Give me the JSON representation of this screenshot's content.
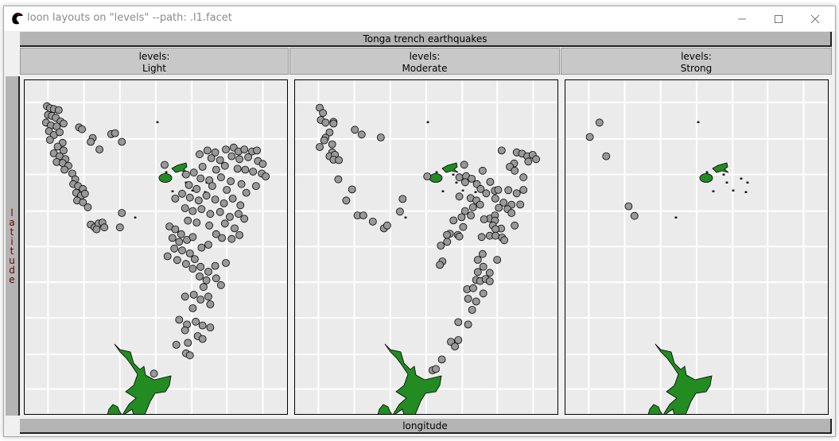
{
  "window": {
    "title": "loon layouts on \"levels\" --path: .l1.facet",
    "controls": [
      "minimize",
      "maximize",
      "close"
    ]
  },
  "chart_data": {
    "type": "scatter",
    "title": "Tonga trench earthquakes",
    "xlabel": "longitude",
    "ylabel": "latitude",
    "xlim": [
      162.9,
      189.9
    ],
    "ylim": [
      -42.3,
      -7.6
    ],
    "grid": true,
    "grid_x": [
      165.3,
      169.0,
      172.7,
      176.4,
      180.1,
      183.7,
      187.4
    ],
    "grid_y": [
      -9.9,
      -13.7,
      -17.4,
      -21.2,
      -24.9,
      -28.6,
      -32.3,
      -36.1,
      -39.7
    ],
    "background_map": "New Zealand and Fiji land masses",
    "colors": {
      "points": "#999999",
      "land": "#228b22",
      "panel_bg": "#ebebeb",
      "grid": "#ffffff"
    },
    "facet_variable": "levels:",
    "panels": [
      {
        "label": "Light",
        "points": [
          [
            165.2,
            -10.3
          ],
          [
            165.5,
            -10.5
          ],
          [
            165.9,
            -10.6
          ],
          [
            166.4,
            -10.7
          ],
          [
            165.3,
            -11.2
          ],
          [
            165.7,
            -11.3
          ],
          [
            166.1,
            -11.5
          ],
          [
            166.6,
            -11.9
          ],
          [
            165.1,
            -12.0
          ],
          [
            165.6,
            -12.3
          ],
          [
            166.2,
            -12.4
          ],
          [
            166.9,
            -12.1
          ],
          [
            165.4,
            -12.9
          ],
          [
            165.9,
            -13.3
          ],
          [
            166.5,
            -13.0
          ],
          [
            165.5,
            -13.8
          ],
          [
            166.8,
            -14.1
          ],
          [
            166.3,
            -14.5
          ],
          [
            166.9,
            -14.9
          ],
          [
            165.9,
            -15.2
          ],
          [
            166.5,
            -15.5
          ],
          [
            167.1,
            -15.8
          ],
          [
            166.2,
            -16.1
          ],
          [
            166.8,
            -16.2
          ],
          [
            167.4,
            -16.5
          ],
          [
            167.0,
            -16.9
          ],
          [
            167.8,
            -17.3
          ],
          [
            168.1,
            -17.9
          ],
          [
            167.9,
            -18.4
          ],
          [
            168.4,
            -18.6
          ],
          [
            168.9,
            -18.9
          ],
          [
            168.2,
            -19.3
          ],
          [
            168.7,
            -19.6
          ],
          [
            169.1,
            -19.4
          ],
          [
            168.3,
            -20.1
          ],
          [
            168.9,
            -20.3
          ],
          [
            169.4,
            -20.8
          ],
          [
            169.7,
            -22.6
          ],
          [
            170.1,
            -22.9
          ],
          [
            170.5,
            -22.5
          ],
          [
            170.9,
            -22.4
          ],
          [
            171.1,
            -22.9
          ],
          [
            170.3,
            -23.1
          ],
          [
            168.5,
            -12.5
          ],
          [
            168.8,
            -12.7
          ],
          [
            169.9,
            -13.6
          ],
          [
            169.7,
            -14.0
          ],
          [
            170.6,
            -14.8
          ],
          [
            171.8,
            -13.2
          ],
          [
            172.2,
            -13.1
          ],
          [
            172.9,
            -14.0
          ],
          [
            172.9,
            -21.4
          ],
          [
            172.7,
            -22.9
          ],
          [
            181.7,
            -14.9
          ],
          [
            182.5,
            -15.1
          ],
          [
            183.6,
            -14.8
          ],
          [
            184.4,
            -14.6
          ],
          [
            184.9,
            -15.0
          ],
          [
            185.5,
            -14.8
          ],
          [
            186.3,
            -15.0
          ],
          [
            186.8,
            -14.9
          ],
          [
            182.1,
            -15.7
          ],
          [
            183.0,
            -15.9
          ],
          [
            184.2,
            -15.5
          ],
          [
            185.0,
            -15.8
          ],
          [
            185.9,
            -15.6
          ],
          [
            186.9,
            -16.0
          ],
          [
            187.4,
            -16.3
          ],
          [
            181.2,
            -16.6
          ],
          [
            182.6,
            -16.9
          ],
          [
            183.5,
            -16.5
          ],
          [
            184.8,
            -16.8
          ],
          [
            185.6,
            -16.9
          ],
          [
            186.4,
            -17.1
          ],
          [
            187.3,
            -17.3
          ],
          [
            187.7,
            -17.6
          ],
          [
            179.5,
            -17.4
          ],
          [
            180.3,
            -17.2
          ],
          [
            181.0,
            -17.8
          ],
          [
            181.9,
            -18.0
          ],
          [
            183.1,
            -17.7
          ],
          [
            184.1,
            -18.1
          ],
          [
            185.2,
            -18.4
          ],
          [
            186.7,
            -18.6
          ],
          [
            179.8,
            -18.5
          ],
          [
            180.6,
            -18.9
          ],
          [
            182.2,
            -18.6
          ],
          [
            183.7,
            -19.0
          ],
          [
            185.7,
            -19.3
          ],
          [
            179.1,
            -19.4
          ],
          [
            179.9,
            -19.8
          ],
          [
            180.8,
            -20.1
          ],
          [
            181.6,
            -19.6
          ],
          [
            182.5,
            -20.0
          ],
          [
            183.4,
            -20.4
          ],
          [
            184.3,
            -19.9
          ],
          [
            185.1,
            -20.6
          ],
          [
            179.4,
            -20.9
          ],
          [
            180.2,
            -21.2
          ],
          [
            181.1,
            -21.0
          ],
          [
            182.0,
            -21.5
          ],
          [
            183.0,
            -21.3
          ],
          [
            184.0,
            -21.8
          ],
          [
            184.9,
            -21.5
          ],
          [
            185.5,
            -22.0
          ],
          [
            179.7,
            -22.2
          ],
          [
            180.6,
            -22.4
          ],
          [
            181.9,
            -22.7
          ],
          [
            183.5,
            -22.5
          ],
          [
            184.5,
            -23.0
          ],
          [
            182.6,
            -23.6
          ],
          [
            183.2,
            -24.0
          ],
          [
            184.2,
            -24.1
          ],
          [
            185.0,
            -23.7
          ],
          [
            177.8,
            -22.8
          ],
          [
            178.4,
            -23.1
          ],
          [
            179.0,
            -23.6
          ],
          [
            178.1,
            -24.0
          ],
          [
            178.8,
            -24.4
          ],
          [
            179.6,
            -24.2
          ],
          [
            180.2,
            -23.9
          ],
          [
            178.3,
            -25.1
          ],
          [
            179.1,
            -25.3
          ],
          [
            179.9,
            -25.6
          ],
          [
            177.6,
            -25.9
          ],
          [
            178.6,
            -26.3
          ],
          [
            179.5,
            -26.7
          ],
          [
            180.4,
            -26.2
          ],
          [
            181.1,
            -25.0
          ],
          [
            181.8,
            -24.7
          ],
          [
            180.2,
            -27.2
          ],
          [
            181.0,
            -27.0
          ],
          [
            181.8,
            -27.5
          ],
          [
            182.5,
            -26.9
          ],
          [
            183.6,
            -26.6
          ],
          [
            180.9,
            -28.0
          ],
          [
            181.6,
            -28.4
          ],
          [
            182.6,
            -28.2
          ],
          [
            183.1,
            -28.9
          ],
          [
            181.3,
            -29.1
          ],
          [
            179.4,
            -30.1
          ],
          [
            180.3,
            -29.9
          ],
          [
            181.0,
            -30.4
          ],
          [
            181.8,
            -30.1
          ],
          [
            182.0,
            -30.9
          ],
          [
            180.2,
            -31.3
          ],
          [
            178.8,
            -32.5
          ],
          [
            179.6,
            -33.0
          ],
          [
            180.5,
            -32.7
          ],
          [
            181.2,
            -33.1
          ],
          [
            182.0,
            -33.3
          ],
          [
            179.4,
            -33.6
          ],
          [
            180.7,
            -34.2
          ],
          [
            181.2,
            -34.5
          ],
          [
            178.5,
            -35.1
          ],
          [
            179.7,
            -34.9
          ],
          [
            179.5,
            -36.0
          ],
          [
            179.9,
            -36.2
          ],
          [
            176.2,
            -38.1
          ],
          [
            177.3,
            -16.4
          ],
          [
            178.4,
            -19.9
          ],
          [
            180.9,
            -15.3
          ]
        ]
      },
      {
        "label": "Moderate",
        "points": [
          [
            165.44,
            -10.46
          ],
          [
            165.77,
            -11.0
          ],
          [
            165.55,
            -11.73
          ],
          [
            166.04,
            -12.0
          ],
          [
            166.86,
            -11.92
          ],
          [
            166.86,
            -12.1
          ],
          [
            166.45,
            -13.02
          ],
          [
            166.04,
            -13.57
          ],
          [
            165.9,
            -13.85
          ],
          [
            166.72,
            -14.26
          ],
          [
            165.44,
            -14.54
          ],
          [
            166.72,
            -15.09
          ],
          [
            166.45,
            -15.5
          ],
          [
            167.0,
            -15.36
          ],
          [
            166.86,
            -15.86
          ],
          [
            167.41,
            -15.9
          ],
          [
            167.35,
            -17.9
          ],
          [
            168.77,
            -18.95
          ],
          [
            168.17,
            -20.1
          ],
          [
            169.05,
            -12.75
          ],
          [
            169.76,
            -13.24
          ],
          [
            171.72,
            -13.55
          ],
          [
            169.32,
            -21.65
          ],
          [
            169.92,
            -21.65
          ],
          [
            170.9,
            -22.3
          ],
          [
            172.05,
            -23.0
          ],
          [
            172.38,
            -22.7
          ],
          [
            173.97,
            -19.94
          ],
          [
            173.69,
            -21.26
          ],
          [
            176.5,
            -17.6
          ],
          [
            180.3,
            -16.38
          ],
          [
            182.2,
            -17.0
          ],
          [
            184.16,
            -14.9
          ],
          [
            185.7,
            -15.1
          ],
          [
            186.26,
            -15.23
          ],
          [
            186.8,
            -15.5
          ],
          [
            187.35,
            -15.36
          ],
          [
            187.7,
            -15.8
          ],
          [
            186.9,
            -16.05
          ],
          [
            185.44,
            -16.25
          ],
          [
            185.0,
            -16.6
          ],
          [
            185.5,
            -17.0
          ],
          [
            186.4,
            -17.7
          ],
          [
            179.8,
            -17.7
          ],
          [
            180.5,
            -17.57
          ],
          [
            181.07,
            -17.84
          ],
          [
            180.4,
            -18.2
          ],
          [
            181.6,
            -18.4
          ],
          [
            182.98,
            -18.17
          ],
          [
            182.0,
            -18.9
          ],
          [
            182.57,
            -19.36
          ],
          [
            183.45,
            -19.08
          ],
          [
            183.8,
            -19.0
          ],
          [
            184.84,
            -19.03
          ],
          [
            185.7,
            -19.36
          ],
          [
            186.4,
            -19.0
          ],
          [
            179.8,
            -19.69
          ],
          [
            180.96,
            -19.85
          ],
          [
            181.56,
            -20.1
          ],
          [
            181.94,
            -20.54
          ],
          [
            183.5,
            -19.9
          ],
          [
            184.35,
            -20.32
          ],
          [
            185.17,
            -20.54
          ],
          [
            186.07,
            -20.52
          ],
          [
            183.86,
            -20.87
          ],
          [
            184.76,
            -21.0
          ],
          [
            185.17,
            -21.4
          ],
          [
            181.2,
            -20.82
          ],
          [
            180.39,
            -21.2
          ],
          [
            180.99,
            -21.65
          ],
          [
            180.03,
            -21.84
          ],
          [
            179.2,
            -22.17
          ],
          [
            182.93,
            -21.98
          ],
          [
            182.35,
            -22.06
          ],
          [
            183.47,
            -21.65
          ],
          [
            183.47,
            -22.2
          ],
          [
            183.25,
            -22.7
          ],
          [
            184.1,
            -23.02
          ],
          [
            183.53,
            -23.08
          ],
          [
            185.5,
            -22.7
          ],
          [
            180.2,
            -22.86
          ],
          [
            178.83,
            -23.55
          ],
          [
            179.65,
            -23.68
          ],
          [
            179.8,
            -23.85
          ],
          [
            178.53,
            -23.68
          ],
          [
            178.55,
            -24.4
          ],
          [
            177.9,
            -24.79
          ],
          [
            182.93,
            -23.77
          ],
          [
            183.53,
            -23.77
          ],
          [
            184.2,
            -23.96
          ],
          [
            184.43,
            -24.23
          ],
          [
            182.1,
            -23.9
          ],
          [
            182.2,
            -25.67
          ],
          [
            181.7,
            -26.27
          ],
          [
            183.7,
            -26.27
          ],
          [
            178.06,
            -26.44
          ],
          [
            177.8,
            -26.8
          ],
          [
            182.27,
            -26.99
          ],
          [
            181.7,
            -27.54
          ],
          [
            182.93,
            -27.62
          ],
          [
            181.53,
            -28.37
          ],
          [
            181.94,
            -28.48
          ],
          [
            182.5,
            -28.26
          ],
          [
            182.93,
            -28.5
          ],
          [
            180.6,
            -29.33
          ],
          [
            181.23,
            -29.22
          ],
          [
            182.27,
            -29.77
          ],
          [
            180.7,
            -30.32
          ],
          [
            181.53,
            -30.6
          ],
          [
            181.12,
            -31.48
          ],
          [
            179.7,
            -32.75
          ],
          [
            180.7,
            -33.0
          ],
          [
            178.94,
            -34.79
          ],
          [
            179.7,
            -34.62
          ],
          [
            179.35,
            -35.28
          ],
          [
            178.0,
            -36.63
          ],
          [
            177.05,
            -37.76
          ],
          [
            177.38,
            -37.62
          ]
        ]
      },
      {
        "label": "Strong",
        "points": [
          [
            166.4,
            -12.0
          ],
          [
            165.4,
            -13.5
          ],
          [
            167.1,
            -15.5
          ],
          [
            169.4,
            -20.7
          ],
          [
            170.0,
            -21.7
          ]
        ]
      }
    ]
  }
}
